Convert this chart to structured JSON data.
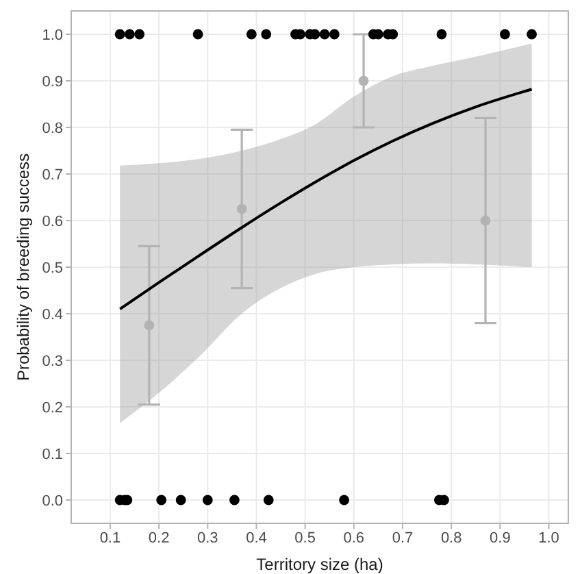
{
  "chart_data": {
    "type": "scatter",
    "xlabel": "Territory size (ha)",
    "ylabel": "Probability of breeding success",
    "xlim": [
      0.02,
      1.04
    ],
    "ylim": [
      -0.05,
      1.05
    ],
    "xticks": [
      0.1,
      0.2,
      0.3,
      0.4,
      0.5,
      0.6,
      0.7,
      0.8,
      0.9,
      {
        "value": 1,
        "label": "1.0"
      }
    ],
    "yticks": [
      {
        "value": 0,
        "label": "0.0"
      },
      0.1,
      0.2,
      0.3,
      0.4,
      0.5,
      0.6,
      0.7,
      0.8,
      0.9,
      {
        "value": 1,
        "label": "1.0"
      }
    ],
    "grid": true,
    "marker": "circle",
    "series": [
      {
        "color": "#b3b3b3",
        "x": [
          0.18,
          0.37,
          0.62,
          0.87
        ],
        "values": [
          0.375,
          0.625,
          0.9,
          0.6
        ],
        "errors": [
          [
            0.205,
            0.545
          ],
          [
            0.455,
            0.795
          ],
          [
            0.8,
            1.0
          ],
          [
            0.38,
            0.82
          ]
        ]
      },
      {
        "type": "line",
        "color": "#000000",
        "marker": "none",
        "x": [
          0.12,
          0.2,
          0.28,
          0.37,
          0.45,
          0.52,
          0.6,
          0.68,
          0.76,
          0.85,
          0.965
        ],
        "values": [
          0.41,
          0.467,
          0.523,
          0.585,
          0.638,
          0.682,
          0.729,
          0.771,
          0.808,
          0.844,
          0.882
        ],
        "lower": [
          0.165,
          0.23,
          0.305,
          0.4,
          0.455,
          0.485,
          0.5,
          0.506,
          0.508,
          0.506,
          0.5
        ],
        "upper": [
          0.718,
          0.723,
          0.732,
          0.75,
          0.775,
          0.806,
          0.866,
          0.91,
          0.932,
          0.952,
          0.98
        ]
      },
      {
        "color": "#000000",
        "x": [
          0.12,
          0.14,
          0.16,
          0.28,
          0.39,
          0.42,
          0.48,
          0.49,
          0.51,
          0.52,
          0.54,
          0.56,
          0.64,
          0.65,
          0.67,
          0.68,
          0.78,
          0.91,
          0.965,
          0.12,
          0.13,
          0.135,
          0.205,
          0.245,
          0.3,
          0.355,
          0.425,
          0.58,
          0.775,
          0.785
        ],
        "values": [
          1,
          1,
          1,
          1,
          1,
          1,
          1,
          1,
          1,
          1,
          1,
          1,
          1,
          1,
          1,
          1,
          1,
          1,
          1,
          0,
          0,
          0,
          0,
          0,
          0,
          0,
          0,
          0,
          0,
          0
        ]
      }
    ]
  }
}
